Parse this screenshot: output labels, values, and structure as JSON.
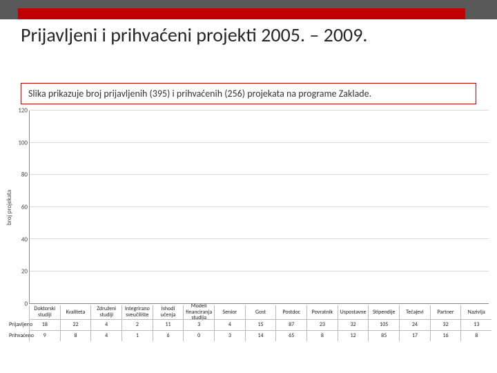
{
  "slide": {
    "title": "Prijavljeni i prihvaćeni projekti 2005. – 2009.",
    "caption": "Slika prikazuje broj prijavljenih (395) i prihvaćenih (256) projekata na programe Zaklade."
  },
  "style": {
    "top_band_color": "#595959",
    "accent_red": "#c00000",
    "background": "#ffffff",
    "grid_color": "#d9d9d9"
  },
  "chart": {
    "type": "bar",
    "ylabel": "broj projekata",
    "ylim": [
      0,
      120
    ],
    "ytick_step": 20,
    "categories": [
      "Doktorski studiji",
      "Kvaliteta",
      "Združeni studiji",
      "Integrirano sveučilište",
      "Ishodi učenja",
      "Modeli financiranja studija",
      "Senior",
      "Gost",
      "Postdoc",
      "Povratnik",
      "Uspostavne",
      "Stipendije",
      "Tečajevi",
      "Partner",
      "Nazivlja"
    ],
    "series": [
      {
        "name": "Prijavljeno",
        "color": "#1f77b4",
        "values": [
          18,
          22,
          4,
          2,
          11,
          3,
          4,
          15,
          87,
          23,
          32,
          105,
          24,
          32,
          13
        ]
      },
      {
        "name": "Prihvaćeno",
        "color": "#a6a6a6",
        "values": [
          9,
          8,
          4,
          1,
          6,
          0,
          3,
          14,
          65,
          8,
          12,
          85,
          17,
          16,
          8
        ]
      }
    ]
  }
}
